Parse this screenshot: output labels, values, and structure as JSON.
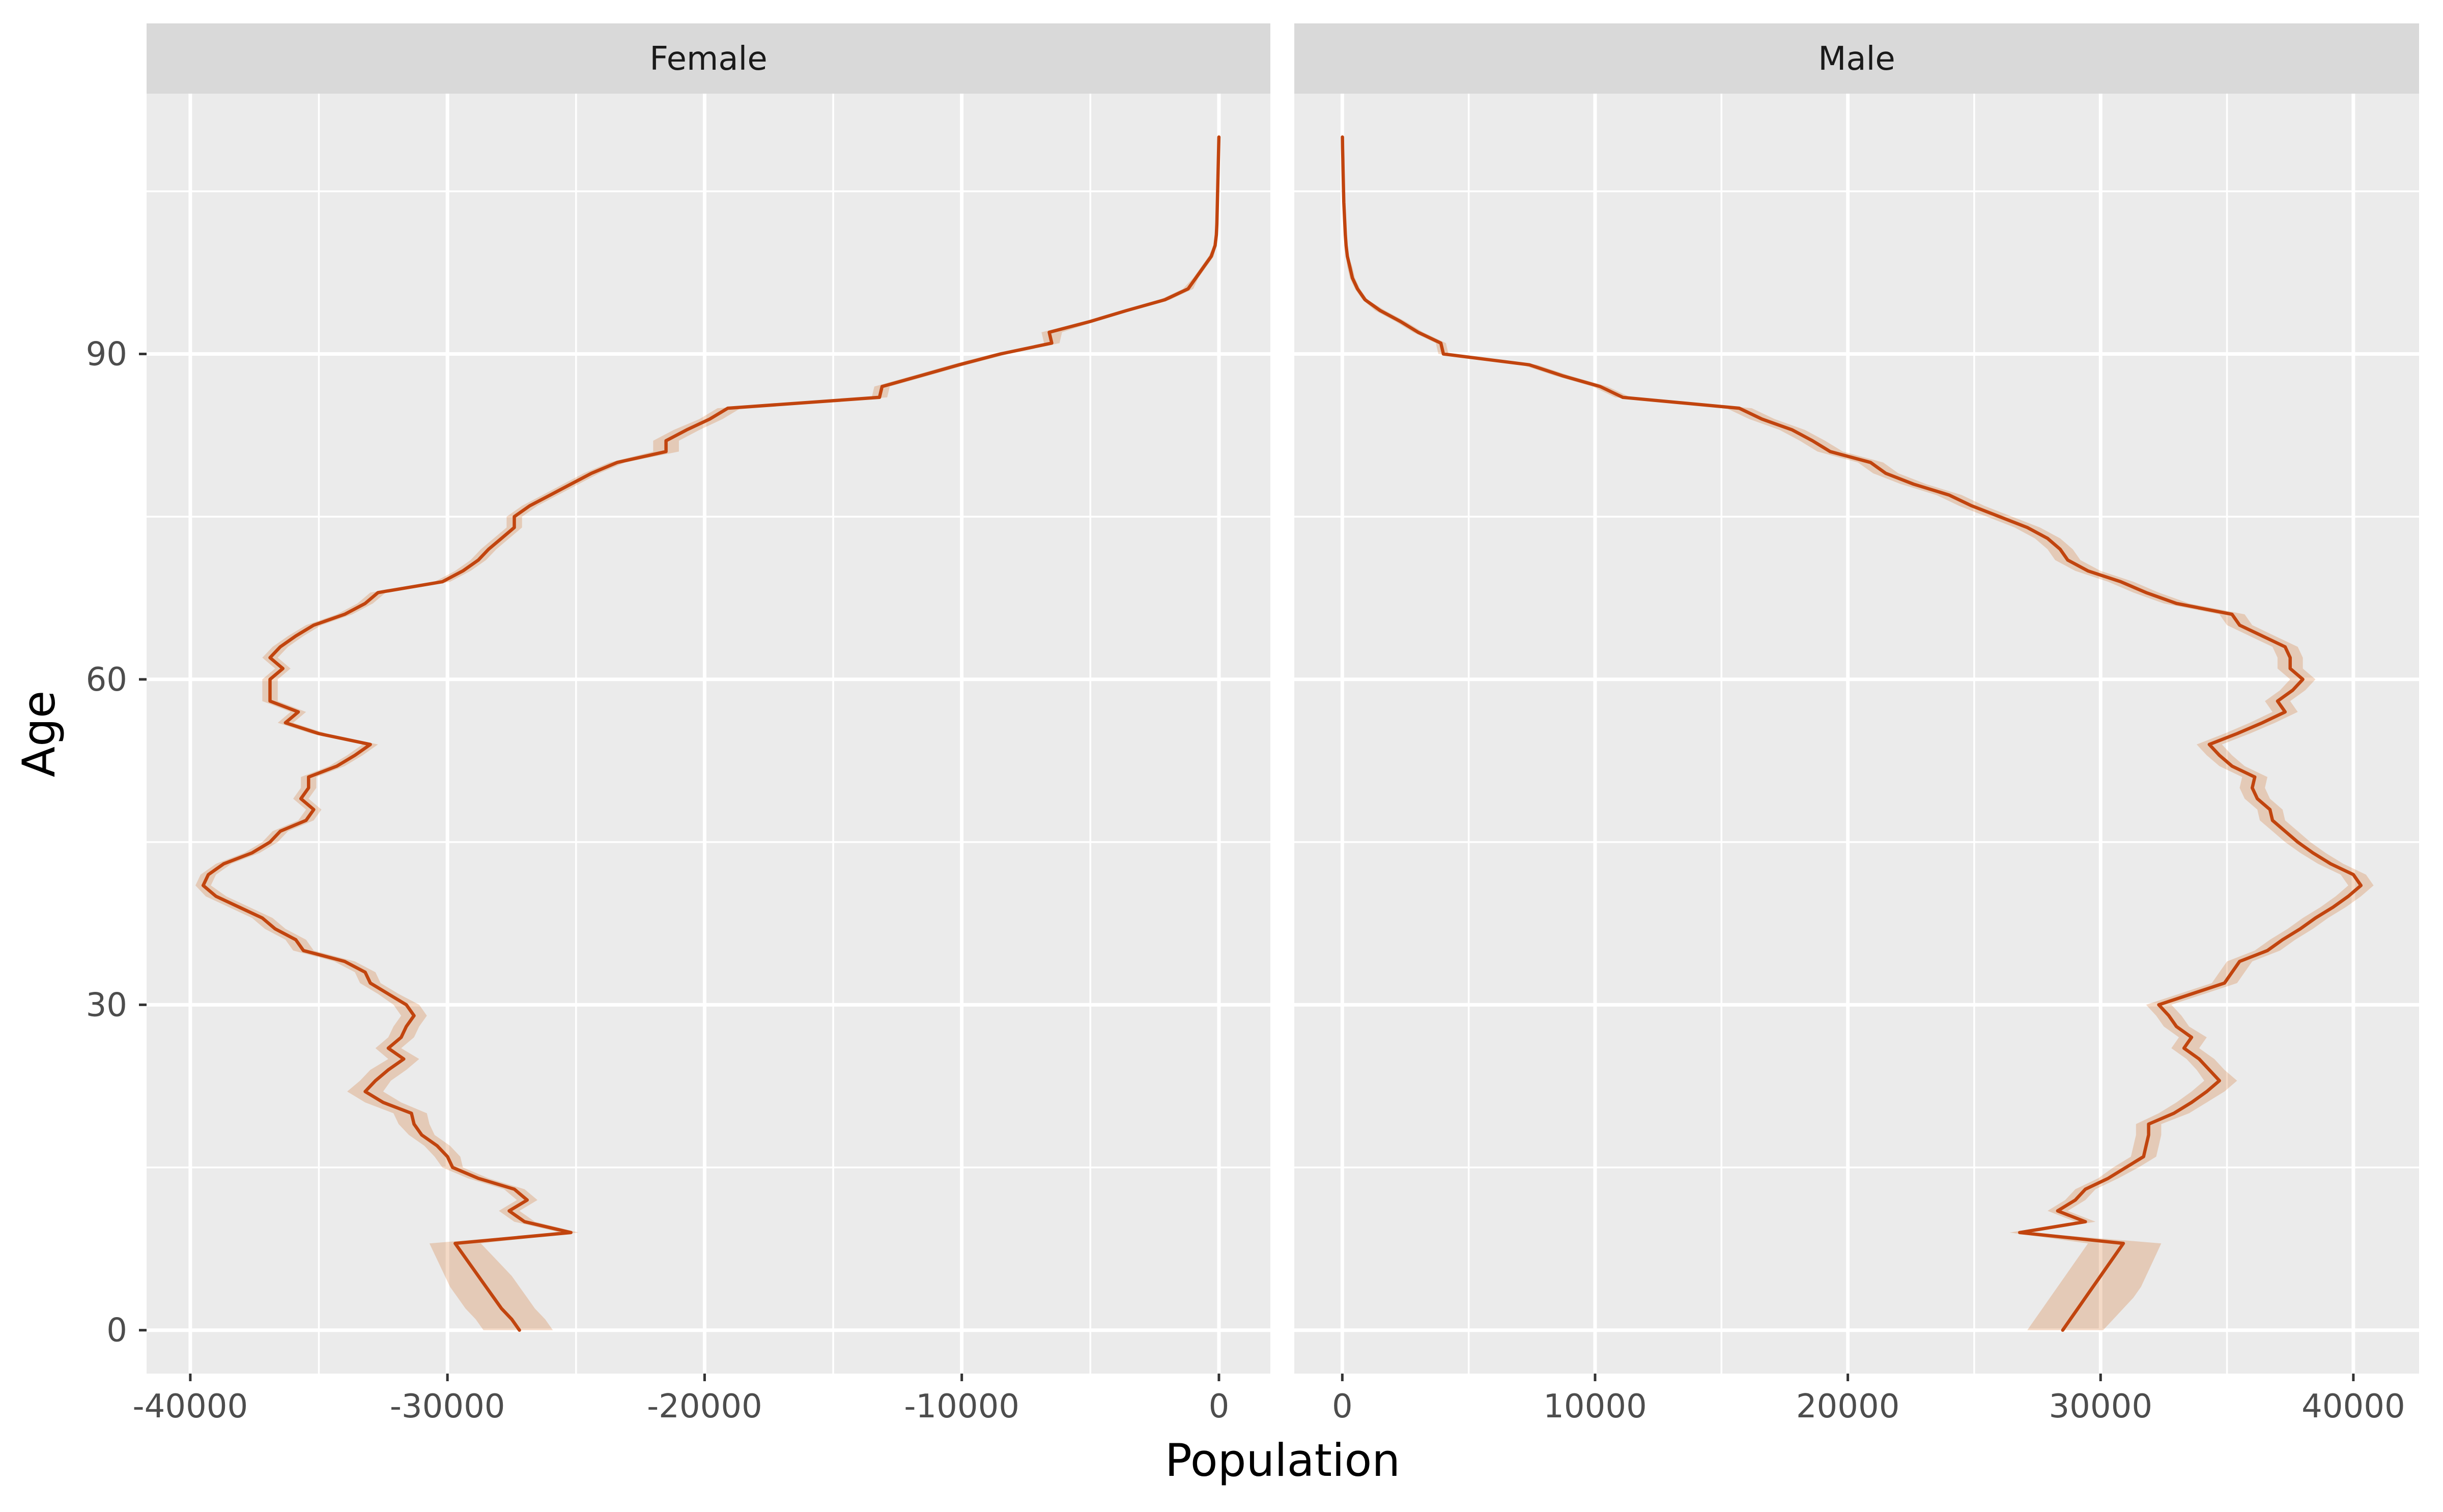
{
  "chart_data": {
    "type": "line",
    "facets": [
      "Female",
      "Male"
    ],
    "xlabel": "Population",
    "ylabel": "Age",
    "y_ticks": [
      0,
      30,
      60,
      90
    ],
    "ylim": [
      -4,
      114
    ],
    "grid": true,
    "line_color": "#C1440E",
    "ribbon_color": "#CC5500",
    "panels": [
      {
        "name": "Female",
        "xlim": [
          -41700,
          2000
        ],
        "x_ticks": [
          -40000,
          -30000,
          -20000,
          -10000,
          0
        ],
        "x_tick_labels": [
          "-40000",
          "-30000",
          "-20000",
          "-10000",
          "0"
        ],
        "age": [
          0,
          1,
          2,
          3,
          4,
          5,
          6,
          7,
          8,
          9,
          10,
          11,
          12,
          13,
          14,
          15,
          16,
          17,
          18,
          19,
          20,
          21,
          22,
          23,
          24,
          25,
          26,
          27,
          28,
          29,
          30,
          31,
          32,
          33,
          34,
          35,
          36,
          37,
          38,
          39,
          40,
          41,
          42,
          43,
          44,
          45,
          46,
          47,
          48,
          49,
          50,
          51,
          52,
          53,
          54,
          55,
          56,
          57,
          58,
          59,
          60,
          61,
          62,
          63,
          64,
          65,
          66,
          67,
          68,
          69,
          70,
          71,
          72,
          73,
          74,
          75,
          76,
          77,
          78,
          79,
          80,
          81,
          82,
          83,
          84,
          85,
          86,
          87,
          88,
          89,
          90,
          91,
          92,
          93,
          94,
          95,
          96,
          97,
          98,
          99,
          100,
          101,
          102,
          103,
          104,
          105,
          106,
          107,
          108,
          109,
          110
        ],
        "population": [
          -27200,
          -27500,
          -27900,
          -28200,
          -28500,
          -28800,
          -29100,
          -29400,
          -29700,
          -25200,
          -27000,
          -27600,
          -26900,
          -27400,
          -28800,
          -29800,
          -30000,
          -30400,
          -31000,
          -31300,
          -31400,
          -32500,
          -33200,
          -32800,
          -32300,
          -31700,
          -32300,
          -31800,
          -31600,
          -31300,
          -31600,
          -32300,
          -33000,
          -33200,
          -34000,
          -35600,
          -35900,
          -36700,
          -37200,
          -38100,
          -39000,
          -39500,
          -39300,
          -38700,
          -37600,
          -36900,
          -36500,
          -35500,
          -35200,
          -35700,
          -35400,
          -35400,
          -34300,
          -33600,
          -33000,
          -35000,
          -36300,
          -35800,
          -36900,
          -36900,
          -36900,
          -36400,
          -36900,
          -36500,
          -35900,
          -35200,
          -34000,
          -33200,
          -32700,
          -30200,
          -29400,
          -28800,
          -28400,
          -27900,
          -27400,
          -27400,
          -26800,
          -26000,
          -25200,
          -24400,
          -23400,
          -21500,
          -21500,
          -20700,
          -19800,
          -19100,
          -13200,
          -13100,
          -11600,
          -10100,
          -8500,
          -6500,
          -6600,
          -5000,
          -3600,
          -2100,
          -1200,
          -900,
          -600,
          -300,
          -150,
          -100,
          -80,
          -70,
          -60,
          -50,
          -40,
          -30,
          -20,
          -10,
          0
        ],
        "lower": [
          -28600,
          -28900,
          -29300,
          -29600,
          -29900,
          -30100,
          -30300,
          -30500,
          -30700,
          -25600,
          -27400,
          -28000,
          -27300,
          -27800,
          -29200,
          -30200,
          -30500,
          -30900,
          -31500,
          -31900,
          -32100,
          -33200,
          -33900,
          -33400,
          -33000,
          -32300,
          -32800,
          -32300,
          -32100,
          -31800,
          -32100,
          -32700,
          -33400,
          -33600,
          -34400,
          -36000,
          -36300,
          -37100,
          -37600,
          -38500,
          -39400,
          -39800,
          -39600,
          -39000,
          -37900,
          -37200,
          -36800,
          -35800,
          -35500,
          -36000,
          -35700,
          -35700,
          -34600,
          -33900,
          -33300,
          -35300,
          -36600,
          -36100,
          -37200,
          -37200,
          -37200,
          -36700,
          -37200,
          -36800,
          -36200,
          -35500,
          -34300,
          -33500,
          -33000,
          -30500,
          -29700,
          -29100,
          -28700,
          -28200,
          -27700,
          -27700,
          -27100,
          -26300,
          -25500,
          -24700,
          -23700,
          -22000,
          -22000,
          -21200,
          -20200,
          -19500,
          -13500,
          -13400,
          -11900,
          -10400,
          -8800,
          -6800,
          -6900,
          -5200,
          -3800,
          -2300,
          -1400,
          -1000,
          -700,
          -400,
          -200,
          -150,
          -120,
          -100,
          -80,
          -70,
          -60,
          -40,
          -30,
          -20,
          -10
        ],
        "upper": [
          -25900,
          -26200,
          -26600,
          -26900,
          -27200,
          -27500,
          -27900,
          -28300,
          -28700,
          -24900,
          -26600,
          -27200,
          -26500,
          -27000,
          -28400,
          -29400,
          -29500,
          -29900,
          -30500,
          -30700,
          -30800,
          -31800,
          -32500,
          -32200,
          -31600,
          -31100,
          -31800,
          -31300,
          -31100,
          -30800,
          -31100,
          -31900,
          -32600,
          -32800,
          -33600,
          -35200,
          -35500,
          -36300,
          -36800,
          -37700,
          -38600,
          -39200,
          -39000,
          -38400,
          -37300,
          -36600,
          -36200,
          -35200,
          -34900,
          -35400,
          -35100,
          -35100,
          -34000,
          -33300,
          -32700,
          -34700,
          -36000,
          -35500,
          -36600,
          -36600,
          -36600,
          -36100,
          -36600,
          -36200,
          -35600,
          -34900,
          -33700,
          -32900,
          -32400,
          -29900,
          -29100,
          -28500,
          -28100,
          -27600,
          -27100,
          -27100,
          -26500,
          -25700,
          -24900,
          -24100,
          -23100,
          -21000,
          -21000,
          -20200,
          -19300,
          -18600,
          -12900,
          -12800,
          -11300,
          -9800,
          -8200,
          -6200,
          -6100,
          -4800,
          -3400,
          -1900,
          -1000,
          -800,
          -500,
          -200,
          -100,
          -50,
          -40,
          -40,
          -40,
          -30,
          -20,
          -20,
          -10,
          0,
          0
        ]
      },
      {
        "name": "Male",
        "xlim": [
          -1900,
          42600
        ],
        "x_ticks": [
          0,
          10000,
          20000,
          30000,
          40000
        ],
        "x_tick_labels": [
          "0",
          "10000",
          "20000",
          "30000",
          "40000"
        ],
        "age": [
          0,
          1,
          2,
          3,
          4,
          5,
          6,
          7,
          8,
          9,
          10,
          11,
          12,
          13,
          14,
          15,
          16,
          17,
          18,
          19,
          20,
          21,
          22,
          23,
          24,
          25,
          26,
          27,
          28,
          29,
          30,
          31,
          32,
          33,
          34,
          35,
          36,
          37,
          38,
          39,
          40,
          41,
          42,
          43,
          44,
          45,
          46,
          47,
          48,
          49,
          50,
          51,
          52,
          53,
          54,
          55,
          56,
          57,
          58,
          59,
          60,
          61,
          62,
          63,
          64,
          65,
          66,
          67,
          68,
          69,
          70,
          71,
          72,
          73,
          74,
          75,
          76,
          77,
          78,
          79,
          80,
          81,
          82,
          83,
          84,
          85,
          86,
          87,
          88,
          89,
          90,
          91,
          92,
          93,
          94,
          95,
          96,
          97,
          98,
          99,
          100,
          101,
          102,
          103,
          104,
          105,
          106,
          107,
          108,
          109,
          110
        ],
        "population": [
          28500,
          28800,
          29100,
          29400,
          29700,
          30000,
          30300,
          30600,
          30900,
          26800,
          29400,
          28300,
          29000,
          29400,
          30300,
          31000,
          31700,
          31800,
          31900,
          31900,
          32900,
          33600,
          34200,
          34700,
          34300,
          33900,
          33300,
          33600,
          33000,
          32700,
          32300,
          33600,
          34900,
          35200,
          35500,
          36600,
          37200,
          37900,
          38500,
          39200,
          39800,
          40300,
          40000,
          39100,
          38400,
          37800,
          37300,
          36800,
          36700,
          36200,
          36000,
          36100,
          35200,
          34700,
          34300,
          35400,
          36400,
          37300,
          37000,
          37600,
          38000,
          37500,
          37500,
          37300,
          36400,
          35500,
          35200,
          33000,
          31800,
          30800,
          29500,
          28700,
          28400,
          27900,
          27100,
          26000,
          24900,
          24000,
          22600,
          21500,
          20900,
          19300,
          18600,
          17800,
          16600,
          15700,
          11100,
          10200,
          8700,
          7400,
          4000,
          3900,
          3000,
          2300,
          1500,
          900,
          600,
          400,
          300,
          200,
          150,
          120,
          100,
          80,
          60,
          50,
          40,
          30,
          20,
          10,
          5
        ],
        "lower": [
          27100,
          27400,
          27700,
          28000,
          28300,
          28600,
          28900,
          29200,
          29500,
          26400,
          29000,
          27900,
          28600,
          29000,
          29900,
          30500,
          31200,
          31300,
          31400,
          31400,
          32300,
          33000,
          33600,
          34100,
          33800,
          33400,
          32800,
          33100,
          32500,
          32200,
          31800,
          33100,
          34400,
          34700,
          35000,
          36100,
          36700,
          37400,
          38000,
          38700,
          39300,
          39800,
          39500,
          38600,
          37900,
          37300,
          36800,
          36300,
          36200,
          35700,
          35500,
          35600,
          34700,
          34200,
          33800,
          34900,
          35900,
          36800,
          36500,
          37100,
          37500,
          37000,
          37000,
          36800,
          35900,
          35000,
          34700,
          32500,
          31300,
          30300,
          29000,
          28200,
          27900,
          27400,
          26600,
          25500,
          24400,
          23500,
          22100,
          21000,
          20400,
          18800,
          18100,
          17300,
          16100,
          15200,
          10800,
          9900,
          8400,
          7100,
          3800,
          3700,
          2800,
          2100,
          1300,
          800,
          500,
          300,
          200,
          150,
          100,
          80,
          60,
          50,
          40,
          30,
          20,
          15,
          10,
          5,
          0
        ],
        "upper": [
          30100,
          30500,
          30900,
          31300,
          31600,
          31800,
          32000,
          32200,
          32400,
          27200,
          29800,
          28700,
          29400,
          29800,
          30700,
          31500,
          32200,
          32300,
          32400,
          32400,
          33500,
          34200,
          34900,
          35400,
          34900,
          34500,
          33900,
          34200,
          33500,
          33200,
          32800,
          34100,
          35400,
          35700,
          36000,
          37100,
          37700,
          38400,
          39000,
          39700,
          40300,
          40800,
          40500,
          39600,
          38900,
          38300,
          37800,
          37300,
          37200,
          36700,
          36500,
          36600,
          35700,
          35200,
          34800,
          35900,
          36900,
          37800,
          37500,
          38100,
          38500,
          38000,
          38000,
          37800,
          36900,
          36000,
          35700,
          33500,
          32300,
          31300,
          30000,
          29200,
          28900,
          28400,
          27600,
          26500,
          25400,
          24500,
          23100,
          22000,
          21400,
          19800,
          19100,
          18300,
          17100,
          16200,
          11400,
          10500,
          9000,
          7700,
          4200,
          4100,
          3200,
          2500,
          1700,
          1000,
          700,
          500,
          400,
          250,
          200,
          160,
          140,
          110,
          80,
          70,
          60,
          45,
          30,
          15,
          10
        ]
      }
    ]
  }
}
